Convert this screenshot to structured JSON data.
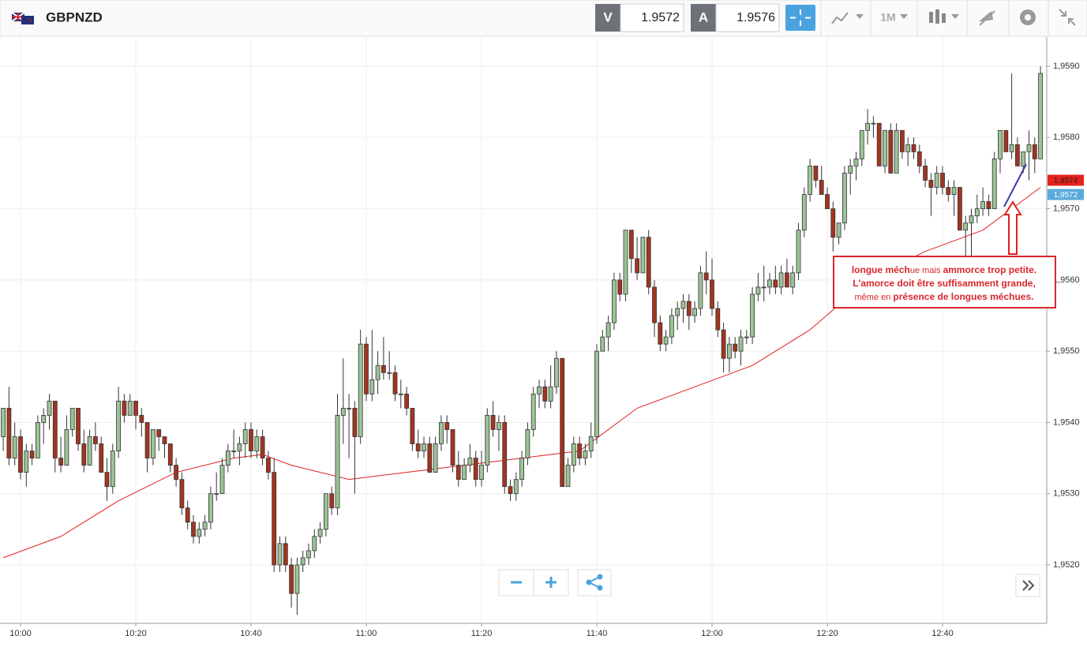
{
  "header": {
    "symbol": "GBPNZD",
    "bid_label": "V",
    "bid": "1.9572",
    "ask_label": "A",
    "ask": "1.9576",
    "timeframe": "1M"
  },
  "chart_data": {
    "type": "candlestick",
    "ylim": [
      1.95118,
      1.95941
    ],
    "yticks": [
      {
        "value": 1.952,
        "label": "1,9520"
      },
      {
        "value": 1.953,
        "label": "1,9530"
      },
      {
        "value": 1.954,
        "label": "1,9540"
      },
      {
        "value": 1.955,
        "label": "1,9550"
      },
      {
        "value": 1.956,
        "label": "1,9560"
      },
      {
        "value": 1.957,
        "label": "1,9570"
      },
      {
        "value": 1.958,
        "label": "1,9580"
      },
      {
        "value": 1.959,
        "label": "1,9590"
      }
    ],
    "xticks": [
      {
        "value": 3,
        "label": "10:00"
      },
      {
        "value": 23,
        "label": "10:20"
      },
      {
        "value": 43,
        "label": "10:40"
      },
      {
        "value": 63,
        "label": "11:00"
      },
      {
        "value": 83,
        "label": "11:20"
      },
      {
        "value": 103,
        "label": "11:40"
      },
      {
        "value": 123,
        "label": "12:00"
      },
      {
        "value": 143,
        "label": "12:20"
      },
      {
        "value": 163,
        "label": "12:40"
      }
    ],
    "grid": true,
    "up_color": "#9cc497",
    "down_color": "#a3351f",
    "candles": [
      [
        1.9538,
        1.9542,
        1.9536,
        1.9542
      ],
      [
        1.9542,
        1.9545,
        1.9534,
        1.9535
      ],
      [
        1.9535,
        1.954,
        1.9534,
        1.9538
      ],
      [
        1.9538,
        1.9539,
        1.9532,
        1.9533
      ],
      [
        1.9533,
        1.9537,
        1.9531,
        1.9536
      ],
      [
        1.9536,
        1.9537,
        1.9534,
        1.9535
      ],
      [
        1.9535,
        1.9541,
        1.9535,
        1.954
      ],
      [
        1.954,
        1.9542,
        1.9537,
        1.9541
      ],
      [
        1.9541,
        1.9544,
        1.9539,
        1.9543
      ],
      [
        1.9543,
        1.9543,
        1.9533,
        1.9535
      ],
      [
        1.9535,
        1.9538,
        1.9533,
        1.9534
      ],
      [
        1.9534,
        1.9541,
        1.9534,
        1.9539
      ],
      [
        1.9539,
        1.9542,
        1.9538,
        1.9542
      ],
      [
        1.9542,
        1.9542,
        1.9536,
        1.9537
      ],
      [
        1.9537,
        1.9539,
        1.9533,
        1.9534
      ],
      [
        1.9534,
        1.9539,
        1.9534,
        1.9538
      ],
      [
        1.9538,
        1.954,
        1.9536,
        1.9537
      ],
      [
        1.9537,
        1.9538,
        1.9533,
        1.9533
      ],
      [
        1.9533,
        1.9535,
        1.9529,
        1.9531
      ],
      [
        1.9531,
        1.9537,
        1.953,
        1.9536
      ],
      [
        1.9536,
        1.9545,
        1.9535,
        1.9543
      ],
      [
        1.9543,
        1.9544,
        1.954,
        1.9541
      ],
      [
        1.9541,
        1.9544,
        1.9541,
        1.9543
      ],
      [
        1.9543,
        1.9543,
        1.9539,
        1.9541
      ],
      [
        1.9541,
        1.9542,
        1.9538,
        1.954
      ],
      [
        1.954,
        1.954,
        1.9533,
        1.9535
      ],
      [
        1.9535,
        1.9539,
        1.9534,
        1.9539
      ],
      [
        1.9539,
        1.9539,
        1.9536,
        1.9538
      ],
      [
        1.9538,
        1.9538,
        1.9535,
        1.9537
      ],
      [
        1.9537,
        1.9537,
        1.9533,
        1.9534
      ],
      [
        1.9534,
        1.9535,
        1.9531,
        1.9532
      ],
      [
        1.9532,
        1.9533,
        1.9527,
        1.9528
      ],
      [
        1.9528,
        1.9529,
        1.9525,
        1.9526
      ],
      [
        1.9526,
        1.9527,
        1.9523,
        1.9524
      ],
      [
        1.9524,
        1.9526,
        1.9523,
        1.9525
      ],
      [
        1.9525,
        1.9527,
        1.9524,
        1.9526
      ],
      [
        1.9526,
        1.9531,
        1.9525,
        1.953
      ],
      [
        1.953,
        1.9533,
        1.9529,
        1.953
      ],
      [
        1.953,
        1.9535,
        1.953,
        1.9534
      ],
      [
        1.9534,
        1.9537,
        1.9533,
        1.9536
      ],
      [
        1.9536,
        1.9539,
        1.9535,
        1.9536
      ],
      [
        1.9536,
        1.9538,
        1.9534,
        1.9537
      ],
      [
        1.9537,
        1.954,
        1.9535,
        1.9539
      ],
      [
        1.9539,
        1.954,
        1.9535,
        1.9536
      ],
      [
        1.9536,
        1.9539,
        1.9535,
        1.9538
      ],
      [
        1.9538,
        1.9539,
        1.9534,
        1.9535
      ],
      [
        1.9535,
        1.9536,
        1.9532,
        1.9533
      ],
      [
        1.9533,
        1.9535,
        1.9519,
        1.952
      ],
      [
        1.952,
        1.9524,
        1.9519,
        1.9523
      ],
      [
        1.9523,
        1.9524,
        1.9519,
        1.952
      ],
      [
        1.952,
        1.9521,
        1.9514,
        1.9516
      ],
      [
        1.9516,
        1.9521,
        1.9513,
        1.952
      ],
      [
        1.952,
        1.9522,
        1.9519,
        1.9521
      ],
      [
        1.9521,
        1.9523,
        1.952,
        1.9522
      ],
      [
        1.9522,
        1.9525,
        1.9521,
        1.9524
      ],
      [
        1.9524,
        1.9526,
        1.9523,
        1.9525
      ],
      [
        1.9525,
        1.953,
        1.9524,
        1.953
      ],
      [
        1.953,
        1.9531,
        1.9527,
        1.9528
      ],
      [
        1.9528,
        1.9544,
        1.9527,
        1.9541
      ],
      [
        1.9541,
        1.9549,
        1.9537,
        1.9542
      ],
      [
        1.9542,
        1.9544,
        1.9535,
        1.9542
      ],
      [
        1.9542,
        1.9543,
        1.953,
        1.9538
      ],
      [
        1.9538,
        1.9553,
        1.9537,
        1.9551
      ],
      [
        1.9551,
        1.9552,
        1.9543,
        1.9544
      ],
      [
        1.9544,
        1.9553,
        1.9543,
        1.9546
      ],
      [
        1.9546,
        1.955,
        1.9544,
        1.9548
      ],
      [
        1.9548,
        1.9552,
        1.9546,
        1.9547
      ],
      [
        1.9547,
        1.955,
        1.9546,
        1.9547
      ],
      [
        1.9547,
        1.9548,
        1.9543,
        1.9544
      ],
      [
        1.9544,
        1.9546,
        1.9542,
        1.9544
      ],
      [
        1.9544,
        1.9545,
        1.9541,
        1.9542
      ],
      [
        1.9542,
        1.9542,
        1.9536,
        1.9537
      ],
      [
        1.9537,
        1.9539,
        1.9535,
        1.9536
      ],
      [
        1.9536,
        1.9538,
        1.9535,
        1.9537
      ],
      [
        1.9537,
        1.9538,
        1.9533,
        1.9533
      ],
      [
        1.9533,
        1.9538,
        1.9533,
        1.9537
      ],
      [
        1.9537,
        1.9541,
        1.9536,
        1.954
      ],
      [
        1.954,
        1.9541,
        1.9537,
        1.9539
      ],
      [
        1.9539,
        1.9539,
        1.9533,
        1.9534
      ],
      [
        1.9534,
        1.9536,
        1.9531,
        1.9532
      ],
      [
        1.9532,
        1.9535,
        1.9532,
        1.9534
      ],
      [
        1.9534,
        1.9537,
        1.9533,
        1.9535
      ],
      [
        1.9535,
        1.9536,
        1.9531,
        1.9532
      ],
      [
        1.9532,
        1.9536,
        1.9531,
        1.9534
      ],
      [
        1.9534,
        1.9542,
        1.9533,
        1.9541
      ],
      [
        1.9541,
        1.9543,
        1.9538,
        1.9539
      ],
      [
        1.9539,
        1.9541,
        1.9536,
        1.954
      ],
      [
        1.954,
        1.9541,
        1.953,
        1.9531
      ],
      [
        1.9531,
        1.9532,
        1.9529,
        1.953
      ],
      [
        1.953,
        1.9533,
        1.9529,
        1.9532
      ],
      [
        1.9532,
        1.9536,
        1.9531,
        1.9535
      ],
      [
        1.9535,
        1.954,
        1.9534,
        1.9539
      ],
      [
        1.9539,
        1.9545,
        1.9538,
        1.9544
      ],
      [
        1.9544,
        1.9546,
        1.9542,
        1.9545
      ],
      [
        1.9545,
        1.9546,
        1.9542,
        1.9543
      ],
      [
        1.9543,
        1.9548,
        1.9542,
        1.9545
      ],
      [
        1.9545,
        1.955,
        1.9544,
        1.9549
      ],
      [
        1.9549,
        1.9549,
        1.9531,
        1.9531
      ],
      [
        1.9531,
        1.9535,
        1.9531,
        1.9534
      ],
      [
        1.9534,
        1.9538,
        1.9533,
        1.9537
      ],
      [
        1.9537,
        1.9538,
        1.9534,
        1.9535
      ],
      [
        1.9535,
        1.9537,
        1.9534,
        1.9536
      ],
      [
        1.9536,
        1.954,
        1.9535,
        1.9538
      ],
      [
        1.9538,
        1.9551,
        1.9537,
        1.955
      ],
      [
        1.955,
        1.9553,
        1.955,
        1.9552
      ],
      [
        1.9552,
        1.9555,
        1.955,
        1.9554
      ],
      [
        1.9554,
        1.9561,
        1.9553,
        1.956
      ],
      [
        1.956,
        1.9561,
        1.9557,
        1.9558
      ],
      [
        1.9558,
        1.9567,
        1.9557,
        1.9567
      ],
      [
        1.9567,
        1.9567,
        1.9561,
        1.9563
      ],
      [
        1.9563,
        1.9566,
        1.956,
        1.9561
      ],
      [
        1.9561,
        1.9566,
        1.9561,
        1.9566
      ],
      [
        1.9566,
        1.9567,
        1.9558,
        1.9559
      ],
      [
        1.9559,
        1.956,
        1.9552,
        1.9554
      ],
      [
        1.9554,
        1.9555,
        1.955,
        1.9551
      ],
      [
        1.9551,
        1.9553,
        1.955,
        1.9552
      ],
      [
        1.9552,
        1.9556,
        1.9551,
        1.9555
      ],
      [
        1.9555,
        1.9557,
        1.9553,
        1.9556
      ],
      [
        1.9556,
        1.9558,
        1.9554,
        1.9557
      ],
      [
        1.9557,
        1.9558,
        1.9553,
        1.9555
      ],
      [
        1.9555,
        1.9557,
        1.9554,
        1.9556
      ],
      [
        1.9556,
        1.9562,
        1.9555,
        1.9561
      ],
      [
        1.9561,
        1.9564,
        1.9558,
        1.956
      ],
      [
        1.956,
        1.9563,
        1.9555,
        1.9556
      ],
      [
        1.9556,
        1.9557,
        1.9552,
        1.9553
      ],
      [
        1.9553,
        1.9554,
        1.9547,
        1.9549
      ],
      [
        1.9549,
        1.9552,
        1.9547,
        1.9551
      ],
      [
        1.9551,
        1.9552,
        1.9549,
        1.955
      ],
      [
        1.955,
        1.9553,
        1.9548,
        1.9552
      ],
      [
        1.9552,
        1.9553,
        1.9551,
        1.9552
      ],
      [
        1.9552,
        1.9559,
        1.9551,
        1.9558
      ],
      [
        1.9558,
        1.9561,
        1.9557,
        1.9559
      ],
      [
        1.9559,
        1.9562,
        1.9557,
        1.9559
      ],
      [
        1.9559,
        1.9561,
        1.9558,
        1.956
      ],
      [
        1.956,
        1.9562,
        1.9558,
        1.9559
      ],
      [
        1.9559,
        1.9562,
        1.9558,
        1.9561
      ],
      [
        1.9561,
        1.9563,
        1.9559,
        1.9559
      ],
      [
        1.9559,
        1.9562,
        1.9558,
        1.9561
      ],
      [
        1.9561,
        1.9568,
        1.956,
        1.9567
      ],
      [
        1.9567,
        1.9573,
        1.9566,
        1.9572
      ],
      [
        1.9572,
        1.9577,
        1.9571,
        1.9576
      ],
      [
        1.9576,
        1.9576,
        1.9573,
        1.9574
      ],
      [
        1.9574,
        1.9576,
        1.9572,
        1.9572
      ],
      [
        1.9572,
        1.9573,
        1.957,
        1.957
      ],
      [
        1.957,
        1.9571,
        1.9564,
        1.9566
      ],
      [
        1.9566,
        1.9568,
        1.9565,
        1.9568
      ],
      [
        1.9568,
        1.9576,
        1.9567,
        1.9575
      ],
      [
        1.9575,
        1.9577,
        1.9572,
        1.9576
      ],
      [
        1.9576,
        1.9578,
        1.9574,
        1.9577
      ],
      [
        1.9577,
        1.9581,
        1.9576,
        1.9581
      ],
      [
        1.9581,
        1.9584,
        1.9579,
        1.9582
      ],
      [
        1.9582,
        1.9583,
        1.958,
        1.9582
      ],
      [
        1.9582,
        1.9582,
        1.9576,
        1.9576
      ],
      [
        1.9576,
        1.9581,
        1.9575,
        1.9581
      ],
      [
        1.9581,
        1.9582,
        1.9575,
        1.9575
      ],
      [
        1.9575,
        1.9582,
        1.9575,
        1.9581
      ],
      [
        1.9581,
        1.9581,
        1.9577,
        1.9578
      ],
      [
        1.9578,
        1.958,
        1.9576,
        1.9579
      ],
      [
        1.9579,
        1.958,
        1.9577,
        1.9578
      ],
      [
        1.9578,
        1.9579,
        1.9575,
        1.9576
      ],
      [
        1.9576,
        1.9577,
        1.9573,
        1.9574
      ],
      [
        1.9574,
        1.9575,
        1.9569,
        1.9573
      ],
      [
        1.9573,
        1.9576,
        1.9572,
        1.9575
      ],
      [
        1.9575,
        1.9576,
        1.9572,
        1.9573
      ],
      [
        1.9573,
        1.9574,
        1.9571,
        1.9572
      ],
      [
        1.9572,
        1.9574,
        1.9569,
        1.9573
      ],
      [
        1.9573,
        1.9573,
        1.9567,
        1.9567
      ],
      [
        1.9567,
        1.9569,
        1.9563,
        1.9568
      ],
      [
        1.9568,
        1.957,
        1.9563,
        1.9569
      ],
      [
        1.9569,
        1.9572,
        1.9568,
        1.957
      ],
      [
        1.957,
        1.9573,
        1.9569,
        1.9571
      ],
      [
        1.9571,
        1.9572,
        1.9569,
        1.957
      ],
      [
        1.957,
        1.9578,
        1.957,
        1.9577
      ],
      [
        1.9577,
        1.9581,
        1.9575,
        1.9581
      ],
      [
        1.9581,
        1.9581,
        1.9578,
        1.9578
      ],
      [
        1.9578,
        1.9589,
        1.9577,
        1.9579
      ],
      [
        1.9579,
        1.958,
        1.9576,
        1.9576
      ],
      [
        1.9576,
        1.9578,
        1.9575,
        1.9578
      ],
      [
        1.9578,
        1.9581,
        1.9574,
        1.9579
      ],
      [
        1.9579,
        1.958,
        1.9575,
        1.9577
      ],
      [
        1.9577,
        1.959,
        1.9577,
        1.9589
      ]
    ],
    "moving_average": {
      "color": "#e02020",
      "x": [
        0,
        10,
        20,
        30,
        40,
        45,
        50,
        60,
        70,
        80,
        90,
        100,
        110,
        120,
        130,
        140,
        150,
        160,
        170,
        180
      ],
      "values": [
        1.9521,
        1.9524,
        1.9529,
        1.9533,
        1.9535,
        1.95355,
        1.9534,
        1.9532,
        1.9533,
        1.9534,
        1.9535,
        1.9536,
        1.9542,
        1.9545,
        1.9548,
        1.9553,
        1.956,
        1.9564,
        1.9567,
        1.9573
      ]
    },
    "price_tags": [
      {
        "value": 1.9574,
        "label": "1,9574",
        "color": "#e8201c"
      },
      {
        "value": 1.9572,
        "label": "1,9572",
        "color": "#5aa9dc"
      }
    ],
    "annotation": {
      "lines": [
        [
          {
            "text": "longue méch",
            "bold": true
          },
          {
            "text": "ue mais ",
            "bold": false
          },
          {
            "text": "ammorce trop petite.",
            "bold": true
          }
        ],
        [
          {
            "text": "L'amorce doit être suffisamment grande,",
            "bold": true
          }
        ],
        [
          {
            "text": "même en ",
            "bold": false
          },
          {
            "text": "présence de longues méchues.",
            "bold": true
          }
        ]
      ]
    }
  }
}
